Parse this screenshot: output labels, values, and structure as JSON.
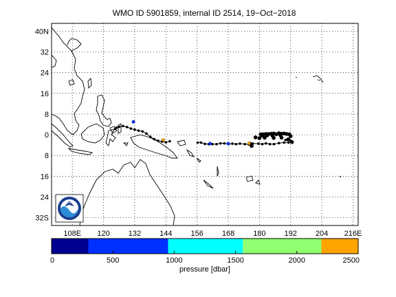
{
  "title": "WMO ID 5901859, internal ID 2514, 19−Oct−2018",
  "map": {
    "lat_ticks": [
      "40N",
      "32",
      "24",
      "16",
      "8",
      "0",
      "8",
      "16",
      "24",
      "32S"
    ],
    "lon_ticks": [
      "108E",
      "120",
      "132",
      "144",
      "156",
      "168",
      "180",
      "192",
      "204",
      "216E"
    ],
    "lat_values": [
      40,
      32,
      24,
      16,
      8,
      0,
      -8,
      -16,
      -24,
      -32
    ],
    "lon_values": [
      108,
      120,
      132,
      144,
      156,
      168,
      180,
      192,
      204,
      216
    ],
    "lat_range": [
      -35,
      43
    ],
    "lon_range": [
      100,
      218
    ],
    "grid": "dotted"
  },
  "colorbar": {
    "label": "pressure [dbar]",
    "tick_labels": [
      "0",
      "500",
      "1000",
      "1500",
      "2000",
      "2500"
    ],
    "tick_values": [
      0,
      500,
      1000,
      1500,
      2000,
      2500
    ],
    "range": [
      0,
      2500
    ],
    "segments": [
      {
        "from": 0,
        "to": 300,
        "color": "#00008f"
      },
      {
        "from": 300,
        "to": 950,
        "color": "#0030ff"
      },
      {
        "from": 950,
        "to": 1560,
        "color": "#00ffff"
      },
      {
        "from": 1560,
        "to": 2200,
        "color": "#90ff70"
      },
      {
        "from": 2200,
        "to": 2500,
        "color": "#ffa400"
      }
    ]
  },
  "trajectory": {
    "points": [
      [
        190.0,
        -2.0
      ],
      [
        191.3,
        -1.5
      ],
      [
        192.1,
        -2.3
      ],
      [
        191.2,
        -3.0
      ],
      [
        189.5,
        -3.0
      ],
      [
        187.5,
        -3.2
      ],
      [
        185.6,
        -3.6
      ],
      [
        184.0,
        -3.6
      ],
      [
        182.5,
        -3.3
      ],
      [
        181.1,
        -3.6
      ],
      [
        179.6,
        -3.4
      ],
      [
        177.4,
        -3.4
      ],
      [
        175.9,
        -3.7
      ],
      [
        174.4,
        -3.6
      ],
      [
        172.5,
        -3.4
      ],
      [
        171.0,
        -3.6
      ],
      [
        169.6,
        -3.4
      ],
      [
        168.1,
        -3.6
      ],
      [
        166.5,
        -3.3
      ],
      [
        165.0,
        -3.3
      ],
      [
        163.5,
        -3.6
      ],
      [
        161.9,
        -3.6
      ],
      [
        160.5,
        -3.6
      ],
      [
        159.0,
        -3.5
      ],
      [
        157.5,
        -3.0
      ],
      [
        156.2,
        -3.0
      ]
    ],
    "west_points": [
      [
        145.5,
        -2.5
      ],
      [
        144.0,
        -2.9
      ],
      [
        142.5,
        -2.6
      ],
      [
        141.0,
        -2.3
      ],
      [
        139.5,
        -1.7
      ],
      [
        138.0,
        -0.8
      ],
      [
        136.5,
        0.5
      ],
      [
        135.0,
        1.3
      ],
      [
        133.5,
        1.6
      ],
      [
        132.0,
        2.0
      ],
      [
        130.5,
        2.4
      ],
      [
        129.0,
        3.0
      ],
      [
        127.5,
        3.4
      ],
      [
        126.0,
        3.1
      ],
      [
        125.0,
        2.8
      ],
      [
        124.5,
        2.3
      ]
    ],
    "cluster_points": [
      [
        180.5,
        0.2
      ],
      [
        181.5,
        0.2
      ],
      [
        182.5,
        0.3
      ],
      [
        183.5,
        0.3
      ],
      [
        184.5,
        0.4
      ],
      [
        185.5,
        0.5
      ],
      [
        186.5,
        0.2
      ],
      [
        187.5,
        0.6
      ],
      [
        188.5,
        0.4
      ],
      [
        189.5,
        0.5
      ],
      [
        190.5,
        0.3
      ],
      [
        191.5,
        0.2
      ],
      [
        181.0,
        -0.3
      ],
      [
        183.0,
        -0.2
      ],
      [
        185.0,
        -0.3
      ],
      [
        188.0,
        -0.1
      ],
      [
        178.5,
        -1.0
      ],
      [
        180.0,
        -1.3
      ],
      [
        182.0,
        -1.1
      ],
      [
        185.5,
        -1.2
      ],
      [
        188.5,
        -1.1
      ],
      [
        191.0,
        -1.8
      ],
      [
        192.0,
        -0.5
      ],
      [
        192.5,
        -2.8
      ],
      [
        177.0,
        -4.3
      ],
      [
        176.5,
        -3.5
      ]
    ],
    "colored_markers": [
      {
        "lon": 143.0,
        "lat": -2.0,
        "color": "#ffa400"
      },
      {
        "lon": 176.0,
        "lat": -3.3,
        "color": "#ffa400"
      },
      {
        "lon": 161.0,
        "lat": -3.4,
        "color": "#0030ff"
      },
      {
        "lon": 131.5,
        "lat": 5.0,
        "color": "#0030ff"
      },
      {
        "lon": 168.0,
        "lat": -3.4,
        "color": "#0030ff"
      }
    ]
  },
  "logo": {
    "text": "NOAA"
  }
}
